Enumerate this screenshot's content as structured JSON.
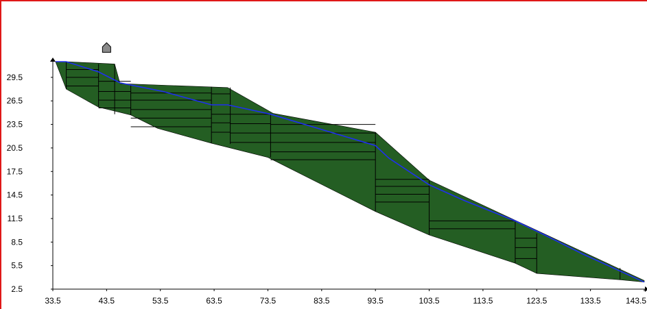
{
  "viewer": {
    "border_color": "#e01818",
    "marker_icon": "house-icon"
  },
  "chart_data": {
    "type": "area",
    "title": "",
    "xlabel": "",
    "ylabel": "",
    "xlim": [
      33.5,
      143.5
    ],
    "ylim": [
      2.5,
      31.5
    ],
    "x_ticks": [
      "33.5",
      "43.5",
      "53.5",
      "63.5",
      "73.5",
      "83.5",
      "93.5",
      "103.5",
      "113.5",
      "123.5",
      "133.5",
      "143.5"
    ],
    "y_ticks": [
      "2.5",
      "5.5",
      "8.5",
      "11.5",
      "14.5",
      "17.5",
      "20.5",
      "23.5",
      "26.5",
      "29.5"
    ],
    "grid": false,
    "colors": {
      "fill": "#245e23",
      "section_lines": "#000000",
      "surface_line": "#1f2ff0",
      "marker": "#8a8a8a"
    },
    "body_outline": {
      "x": [
        34.0,
        36.0,
        45.0,
        46.0,
        66.0,
        74.5,
        93.5,
        103.5,
        143.5,
        143.5,
        139.0,
        123.5,
        119.5,
        103.5,
        93.5,
        73.5,
        63.0,
        53.0,
        48.0,
        42.0,
        36.0
      ],
      "y": [
        31.5,
        31.5,
        31.2,
        28.7,
        28.2,
        24.9,
        22.5,
        16.4,
        3.6,
        3.4,
        3.7,
        4.5,
        5.8,
        9.4,
        12.4,
        19.3,
        21.1,
        23.0,
        24.7,
        25.7,
        28.0
      ]
    },
    "surface_line": {
      "x": [
        34.0,
        36.0,
        42.0,
        46.0,
        54.0,
        63.0,
        66.0,
        74.0,
        93.5,
        96.0,
        103.5,
        110.0,
        119.5,
        125.0,
        132.0,
        143.5
      ],
      "y": [
        31.5,
        31.5,
        30.2,
        28.8,
        27.7,
        26.0,
        26.0,
        24.8,
        20.8,
        19.2,
        15.8,
        13.8,
        11.2,
        9.4,
        7.0,
        3.4
      ]
    },
    "section_dividers": [
      {
        "x": 36.0,
        "y_top": 31.5,
        "y_bottom": 28.0
      },
      {
        "x": 42.0,
        "y_top": 31.2,
        "y_bottom": 25.7
      },
      {
        "x": 45.0,
        "y_top": 31.2,
        "y_bottom": 24.8
      },
      {
        "x": 48.0,
        "y_top": 28.6,
        "y_bottom": 24.7
      },
      {
        "x": 63.0,
        "y_top": 28.3,
        "y_bottom": 21.1
      },
      {
        "x": 66.5,
        "y_top": 28.2,
        "y_bottom": 21.0
      },
      {
        "x": 74.0,
        "y_top": 24.9,
        "y_bottom": 19.3
      },
      {
        "x": 93.5,
        "y_top": 22.5,
        "y_bottom": 12.4
      },
      {
        "x": 103.5,
        "y_top": 16.4,
        "y_bottom": 9.4
      },
      {
        "x": 119.5,
        "y_top": 11.2,
        "y_bottom": 5.8
      },
      {
        "x": 123.5,
        "y_top": 9.6,
        "y_bottom": 4.5
      },
      {
        "x": 139.0,
        "y_top": 5.2,
        "y_bottom": 3.7
      }
    ],
    "layer_lines": [
      {
        "x1": 36.0,
        "x2": 42.0,
        "y": 30.5
      },
      {
        "x1": 36.0,
        "x2": 42.0,
        "y": 29.5
      },
      {
        "x1": 36.0,
        "x2": 42.0,
        "y": 28.4
      },
      {
        "x1": 42.0,
        "x2": 48.0,
        "y": 29.0
      },
      {
        "x1": 42.0,
        "x2": 48.0,
        "y": 27.7
      },
      {
        "x1": 42.0,
        "x2": 48.0,
        "y": 26.6
      },
      {
        "x1": 42.0,
        "x2": 48.0,
        "y": 25.6
      },
      {
        "x1": 48.0,
        "x2": 63.0,
        "y": 27.5
      },
      {
        "x1": 48.0,
        "x2": 63.0,
        "y": 26.6
      },
      {
        "x1": 48.0,
        "x2": 63.0,
        "y": 25.4
      },
      {
        "x1": 48.0,
        "x2": 63.0,
        "y": 24.3
      },
      {
        "x1": 48.0,
        "x2": 63.0,
        "y": 23.2
      },
      {
        "x1": 63.0,
        "x2": 66.5,
        "y": 27.4
      },
      {
        "x1": 63.0,
        "x2": 66.5,
        "y": 26.0
      },
      {
        "x1": 63.0,
        "x2": 66.5,
        "y": 24.8
      },
      {
        "x1": 63.0,
        "x2": 66.5,
        "y": 23.7
      },
      {
        "x1": 63.0,
        "x2": 66.5,
        "y": 22.5
      },
      {
        "x1": 66.5,
        "x2": 74.0,
        "y": 24.8
      },
      {
        "x1": 66.5,
        "x2": 74.0,
        "y": 23.6
      },
      {
        "x1": 66.5,
        "x2": 74.0,
        "y": 22.4
      },
      {
        "x1": 66.5,
        "x2": 74.0,
        "y": 21.2
      },
      {
        "x1": 74.0,
        "x2": 93.5,
        "y": 23.5
      },
      {
        "x1": 74.0,
        "x2": 93.5,
        "y": 22.4
      },
      {
        "x1": 74.0,
        "x2": 93.5,
        "y": 21.2
      },
      {
        "x1": 74.0,
        "x2": 93.5,
        "y": 20.0
      },
      {
        "x1": 74.0,
        "x2": 93.5,
        "y": 19.0
      },
      {
        "x1": 93.5,
        "x2": 103.5,
        "y": 16.5
      },
      {
        "x1": 93.5,
        "x2": 103.5,
        "y": 15.6
      },
      {
        "x1": 93.5,
        "x2": 103.5,
        "y": 14.6
      },
      {
        "x1": 93.5,
        "x2": 103.5,
        "y": 13.6
      },
      {
        "x1": 103.5,
        "x2": 119.5,
        "y": 11.2
      },
      {
        "x1": 103.5,
        "x2": 119.5,
        "y": 10.2
      },
      {
        "x1": 119.5,
        "x2": 123.5,
        "y": 9.0
      },
      {
        "x1": 119.5,
        "x2": 123.5,
        "y": 7.8
      },
      {
        "x1": 119.5,
        "x2": 123.5,
        "y": 6.4
      }
    ],
    "marker": {
      "x": 43.5,
      "y": 33.3
    }
  }
}
